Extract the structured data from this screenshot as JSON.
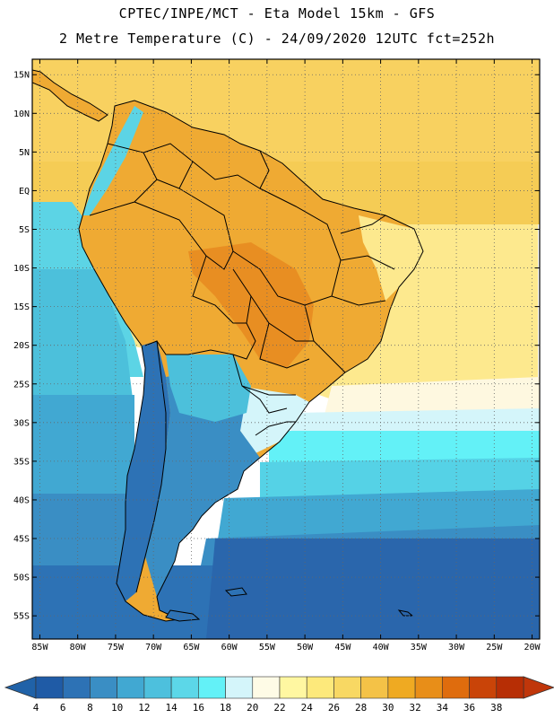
{
  "header": {
    "line1": "CPTEC/INPE/MCT -  Eta Model 15km - GFS",
    "line2": "2 Metre Temperature (C) - 24/09/2020 12UTC fct=252h"
  },
  "map": {
    "lon_range": [
      -86,
      -19
    ],
    "lat_range": [
      -58,
      17
    ],
    "lon_ticks": [
      {
        "value": -85,
        "label": "85W"
      },
      {
        "value": -80,
        "label": "80W"
      },
      {
        "value": -75,
        "label": "75W"
      },
      {
        "value": -70,
        "label": "70W"
      },
      {
        "value": -65,
        "label": "65W"
      },
      {
        "value": -60,
        "label": "60W"
      },
      {
        "value": -55,
        "label": "55W"
      },
      {
        "value": -50,
        "label": "50W"
      },
      {
        "value": -45,
        "label": "45W"
      },
      {
        "value": -40,
        "label": "40W"
      },
      {
        "value": -35,
        "label": "35W"
      },
      {
        "value": -30,
        "label": "30W"
      },
      {
        "value": -25,
        "label": "25W"
      },
      {
        "value": -20,
        "label": "20W"
      }
    ],
    "lat_ticks": [
      {
        "value": 15,
        "label": "15N"
      },
      {
        "value": 10,
        "label": "10N"
      },
      {
        "value": 5,
        "label": "5N"
      },
      {
        "value": 0,
        "label": "EQ"
      },
      {
        "value": -5,
        "label": "5S"
      },
      {
        "value": -10,
        "label": "10S"
      },
      {
        "value": -15,
        "label": "15S"
      },
      {
        "value": -20,
        "label": "20S"
      },
      {
        "value": -25,
        "label": "25S"
      },
      {
        "value": -30,
        "label": "30S"
      },
      {
        "value": -35,
        "label": "35S"
      },
      {
        "value": -40,
        "label": "40S"
      },
      {
        "value": -45,
        "label": "45S"
      },
      {
        "value": -50,
        "label": "50S"
      },
      {
        "value": -55,
        "label": "55S"
      }
    ]
  },
  "colorbar": {
    "values": [
      "4",
      "6",
      "8",
      "10",
      "12",
      "14",
      "16",
      "18",
      "20",
      "22",
      "24",
      "26",
      "28",
      "30",
      "32",
      "34",
      "36",
      "38"
    ],
    "colors": [
      "#1f5ba6",
      "#2d72b5",
      "#3a8ec4",
      "#41a8d2",
      "#4dc0dd",
      "#5cd7e8",
      "#63f1f7",
      "#d4f5fa",
      "#fefbe6",
      "#fff7a1",
      "#fde97b",
      "#f8d863",
      "#f4c247",
      "#efaa22",
      "#e88e18",
      "#df6c0d",
      "#c94408",
      "#b72e05"
    ],
    "low_color": "#2062a8",
    "high_color": "#c0360a"
  }
}
